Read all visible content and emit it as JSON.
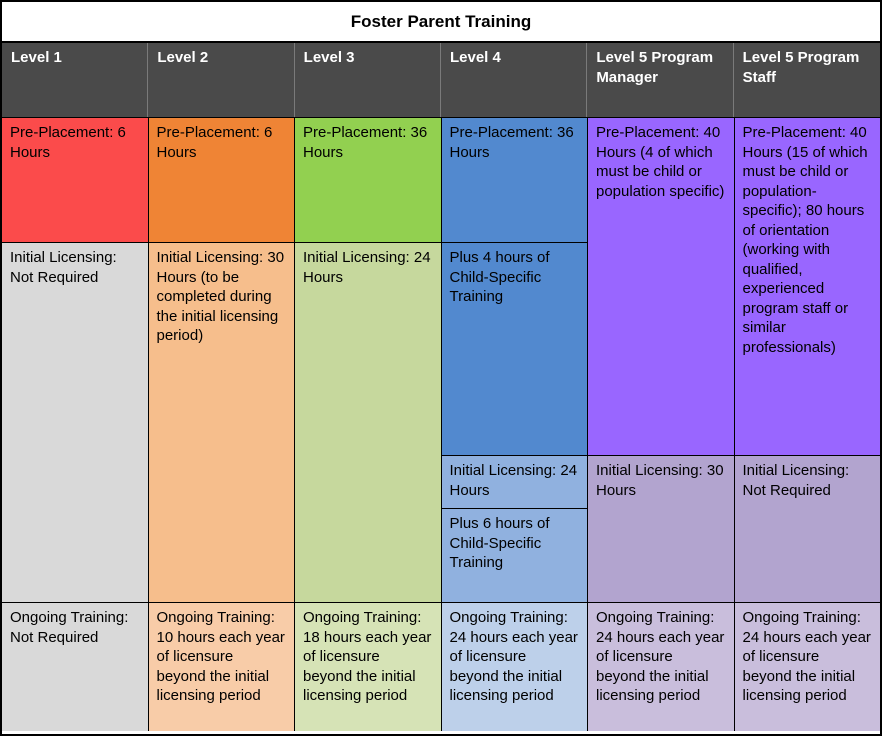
{
  "title": "Foster Parent Training",
  "colors": {
    "header_bg": "#4a4a4a",
    "header_text": "#ffffff",
    "border": "#000000",
    "level1_accent": "#fb4b4b",
    "level2_accent": "#ef8435",
    "level3_accent": "#92d050",
    "level4_accent": "#5289cf",
    "level5_accent": "#9966ff"
  },
  "columns": [
    {
      "header": "Level 1",
      "cells": [
        {
          "label": "pre-placement",
          "text": "Pre-Placement: 6 Hours",
          "bg": "#fb4b4b"
        },
        {
          "label": "initial-licensing",
          "text": "Initial Licensing: Not Required",
          "bg": "#d9d9d9"
        },
        {
          "label": "ongoing-training",
          "text": "Ongoing Training: Not Required",
          "bg": "#d9d9d9"
        }
      ]
    },
    {
      "header": "Level 2",
      "cells": [
        {
          "label": "pre-placement",
          "text": "Pre-Placement: 6 Hours",
          "bg": "#ef8435"
        },
        {
          "label": "initial-licensing",
          "text": "Initial Licensing: 30 Hours (to be completed during the initial licensing period)",
          "bg": "#f6be8c"
        },
        {
          "label": "ongoing-training",
          "text": "Ongoing Training: 10 hours each year of licensure beyond the initial licensing period",
          "bg": "#f8cca8"
        }
      ]
    },
    {
      "header": "Level 3",
      "cells": [
        {
          "label": "pre-placement",
          "text": "Pre-Placement: 36 Hours",
          "bg": "#92d050"
        },
        {
          "label": "initial-licensing",
          "text": "Initial Licensing: 24 Hours",
          "bg": "#c6d89d"
        },
        {
          "label": "ongoing-training",
          "text": "Ongoing Training: 18 hours each year of licensure beyond the initial licensing period",
          "bg": "#d6e3b6"
        }
      ]
    },
    {
      "header": "Level 4",
      "cells": [
        {
          "label": "pre-placement",
          "text": "Pre-Placement: 36 Hours",
          "bg": "#5289cf"
        },
        {
          "label": "plus-child-specific-4",
          "text": "Plus 4 hours of Child-Specific Training",
          "bg": "#5289cf"
        },
        {
          "label": "initial-licensing",
          "text": "Initial Licensing: 24 Hours",
          "bg": "#90b1df"
        },
        {
          "label": "plus-child-specific-6",
          "text": "Plus 6 hours of Child-Specific Training",
          "bg": "#90b1df"
        },
        {
          "label": "ongoing-training",
          "text": "Ongoing Training: 24 hours each year of licensure beyond the initial licensing period",
          "bg": "#bdd0ea"
        }
      ]
    },
    {
      "header": "Level 5 Program Manager",
      "cells": [
        {
          "label": "pre-placement",
          "text": "Pre-Placement: 40 Hours (4 of which must be child or population specific)",
          "bg": "#9966ff"
        },
        {
          "label": "initial-licensing",
          "text": "Initial Licensing: 30 Hours",
          "bg": "#b2a4cf"
        },
        {
          "label": "ongoing-training",
          "text": "Ongoing Training: 24 hours each year of licensure beyond the initial licensing period",
          "bg": "#c9bedc"
        }
      ]
    },
    {
      "header": "Level 5 Program Staff",
      "cells": [
        {
          "label": "pre-placement",
          "text": "Pre-Placement: 40 Hours (15 of which must be child or population-specific); 80 hours of orientation (working with qualified, experienced program staff or similar professionals)",
          "bg": "#9966ff"
        },
        {
          "label": "initial-licensing",
          "text": "Initial Licensing: Not Required",
          "bg": "#b2a4cf"
        },
        {
          "label": "ongoing-training",
          "text": "Ongoing Training: 24 hours each year of licensure beyond the initial licensing period",
          "bg": "#c9bedc"
        }
      ]
    }
  ]
}
